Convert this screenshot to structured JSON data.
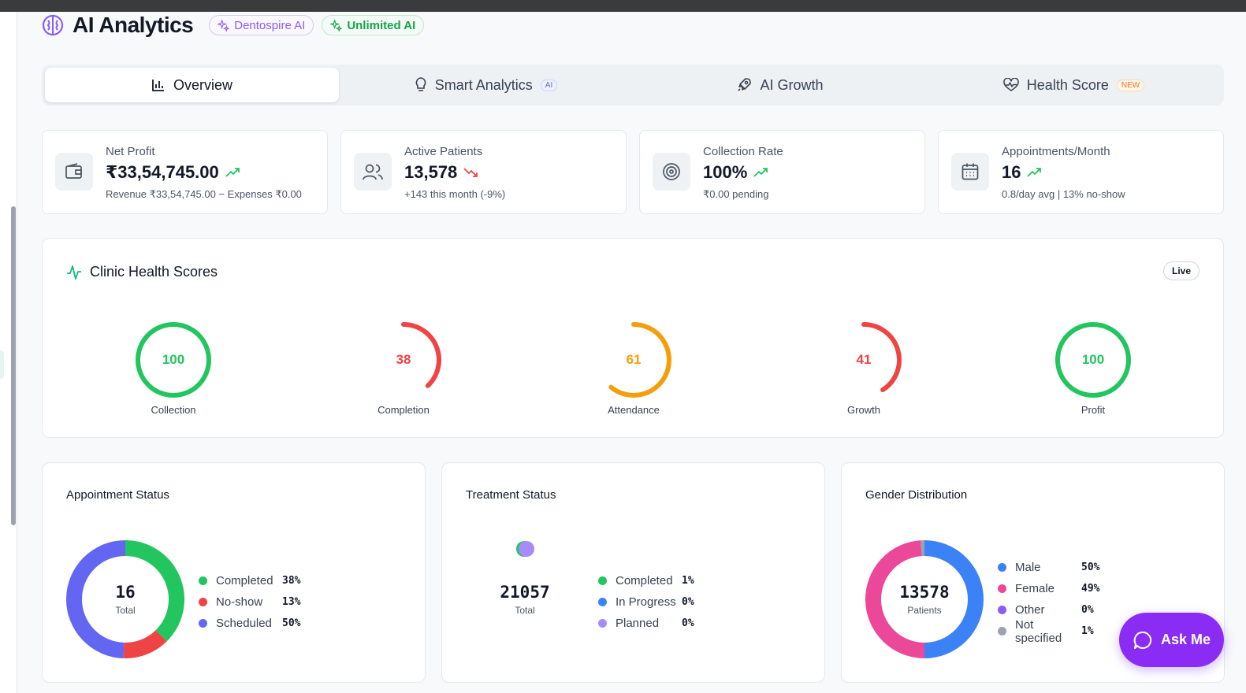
{
  "header": {
    "title": "AI Analytics",
    "badge_dentospire": "Dentospire AI",
    "badge_unlimited": "Unlimited AI"
  },
  "tabs": [
    {
      "label": "Overview",
      "icon": "bar-chart-icon",
      "active": true
    },
    {
      "label": "Smart Analytics",
      "icon": "lightbulb-icon",
      "badge": "AI"
    },
    {
      "label": "AI Growth",
      "icon": "rocket-icon"
    },
    {
      "label": "Health Score",
      "icon": "heart-pulse-icon",
      "badge": "NEW"
    }
  ],
  "kpis": [
    {
      "label": "Net Profit",
      "value": "₹33,54,745.00",
      "trend": "up",
      "sub": "Revenue ₹33,54,745.00 − Expenses ₹0.00",
      "icon": "wallet-icon"
    },
    {
      "label": "Active Patients",
      "value": "13,578",
      "trend": "down",
      "sub": "+143 this month (-9%)",
      "icon": "users-icon"
    },
    {
      "label": "Collection Rate",
      "value": "100%",
      "trend": "up",
      "sub": "₹0.00 pending",
      "icon": "target-icon"
    },
    {
      "label": "Appointments/Month",
      "value": "16",
      "trend": "up",
      "sub": "0.8/day avg | 13% no-show",
      "icon": "calendar-icon"
    }
  ],
  "health": {
    "title": "Clinic Health Scores",
    "live_label": "Live",
    "scores": [
      {
        "label": "Collection",
        "value": 100,
        "color": "#22c55e"
      },
      {
        "label": "Completion",
        "value": 38,
        "color": "#ef4444"
      },
      {
        "label": "Attendance",
        "value": 61,
        "color": "#f59e0b"
      },
      {
        "label": "Growth",
        "value": 41,
        "color": "#ef4444"
      },
      {
        "label": "Profit",
        "value": 100,
        "color": "#22c55e"
      }
    ]
  },
  "appointment_status": {
    "title": "Appointment Status",
    "total": "16",
    "total_caption": "Total",
    "items": [
      {
        "label": "Completed",
        "pct": "38%",
        "value": 38,
        "color": "#22c55e"
      },
      {
        "label": "No-show",
        "pct": "13%",
        "value": 13,
        "color": "#ef4444"
      },
      {
        "label": "Scheduled",
        "pct": "50%",
        "value": 50,
        "color": "#6366f1"
      }
    ]
  },
  "treatment_status": {
    "title": "Treatment Status",
    "total": "21057",
    "total_caption": "Total",
    "items": [
      {
        "label": "Completed",
        "pct": "1%",
        "value": 1,
        "color": "#22c55e"
      },
      {
        "label": "In Progress",
        "pct": "0%",
        "value": 0,
        "color": "#3b82f6"
      },
      {
        "label": "Planned",
        "pct": "0%",
        "value": 0,
        "color": "#a78bfa"
      }
    ]
  },
  "gender_distribution": {
    "title": "Gender Distribution",
    "total": "13578",
    "total_caption": "Patients",
    "items": [
      {
        "label": "Male",
        "pct": "50%",
        "value": 50,
        "color": "#3b82f6"
      },
      {
        "label": "Female",
        "pct": "49%",
        "value": 49,
        "color": "#ec4899"
      },
      {
        "label": "Other",
        "pct": "0%",
        "value": 0,
        "color": "#8b5cf6"
      },
      {
        "label": "Not specified",
        "pct": "1%",
        "value": 1,
        "color": "#9ca3af"
      }
    ]
  },
  "ask_me": "Ask Me"
}
